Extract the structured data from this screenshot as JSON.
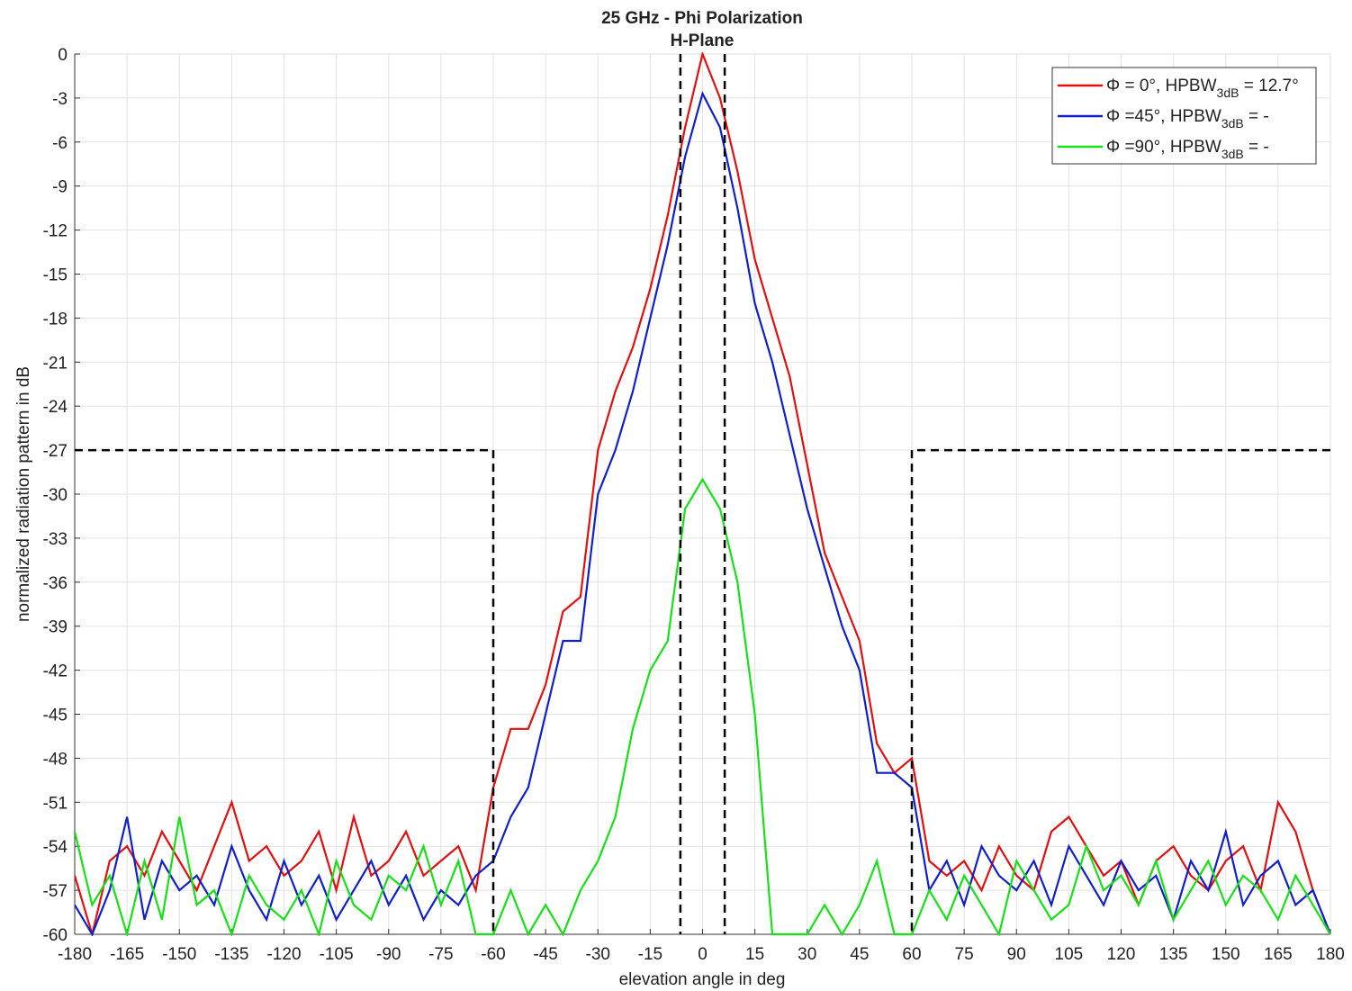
{
  "chart_data": {
    "type": "line",
    "title": "25 GHz - Phi Polarization",
    "subtitle": "H-Plane",
    "x_label": "elevation angle in deg",
    "y_label": "normalized radiation pattern in dB",
    "xlim": [
      -180,
      180
    ],
    "ylim": [
      -60,
      0
    ],
    "xticks": [
      -180,
      -165,
      -150,
      -135,
      -120,
      -105,
      -90,
      -75,
      -60,
      -45,
      -30,
      -15,
      0,
      15,
      30,
      45,
      60,
      75,
      90,
      105,
      120,
      135,
      150,
      165,
      180
    ],
    "yticks": [
      0,
      -3,
      -6,
      -9,
      -12,
      -15,
      -18,
      -21,
      -24,
      -27,
      -30,
      -33,
      -36,
      -39,
      -42,
      -45,
      -48,
      -51,
      -54,
      -57,
      -60
    ],
    "grid": true,
    "legend": "upper right",
    "x": [
      -180,
      -175,
      -170,
      -165,
      -160,
      -155,
      -150,
      -145,
      -140,
      -135,
      -130,
      -125,
      -120,
      -115,
      -110,
      -105,
      -100,
      -95,
      -90,
      -85,
      -80,
      -75,
      -70,
      -65,
      -60,
      -55,
      -50,
      -45,
      -40,
      -35,
      -30,
      -25,
      -20,
      -15,
      -10,
      -5,
      0,
      5,
      10,
      15,
      20,
      25,
      30,
      35,
      40,
      45,
      50,
      55,
      60,
      65,
      70,
      75,
      80,
      85,
      90,
      95,
      100,
      105,
      110,
      115,
      120,
      125,
      130,
      135,
      140,
      145,
      150,
      155,
      160,
      165,
      170,
      175,
      180
    ],
    "series": [
      {
        "name": "Φ = 0°, HPBW",
        "name_sub": "3dB",
        "name_tail": " = 12.7°",
        "color": "#e01010",
        "values": [
          -56,
          -60,
          -55,
          -54,
          -56,
          -53,
          -55,
          -57,
          -54,
          -51,
          -55,
          -54,
          -56,
          -55,
          -53,
          -57,
          -52,
          -56,
          -55,
          -53,
          -56,
          -55,
          -54,
          -57,
          -50,
          -46,
          -46,
          -43,
          -38,
          -37,
          -27,
          -23,
          -20,
          -16,
          -11,
          -5,
          0,
          -3,
          -8,
          -14,
          -18,
          -22,
          -28,
          -34,
          -37,
          -40,
          -47,
          -49,
          -48,
          -55,
          -56,
          -55,
          -57,
          -54,
          -56,
          -57,
          -53,
          -52,
          -54,
          -56,
          -55,
          -58,
          -55,
          -54,
          -56,
          -57,
          -55,
          -54,
          -57,
          -51,
          -53,
          -57,
          -60
        ]
      },
      {
        "name": "Φ =45°, HPBW",
        "name_sub": "3dB",
        "name_tail": " = -",
        "color": "#1020c8",
        "values": [
          -58,
          -60,
          -57,
          -52,
          -59,
          -55,
          -57,
          -56,
          -58,
          -54,
          -57,
          -59,
          -55,
          -58,
          -56,
          -59,
          -57,
          -55,
          -58,
          -56,
          -59,
          -57,
          -58,
          -56,
          -55,
          -52,
          -50,
          -45,
          -40,
          -40,
          -30,
          -27,
          -23,
          -18,
          -13,
          -7,
          -2.7,
          -5,
          -10.5,
          -17,
          -21,
          -26,
          -31,
          -35,
          -39,
          -42,
          -49,
          -49,
          -50,
          -57,
          -55,
          -58,
          -54,
          -56,
          -57,
          -55,
          -58,
          -54,
          -56,
          -58,
          -55,
          -57,
          -56,
          -59,
          -55,
          -57,
          -53,
          -58,
          -56,
          -55,
          -58,
          -57,
          -60
        ]
      },
      {
        "name": "Φ =90°, HPBW",
        "name_sub": "3dB",
        "name_tail": " = -",
        "color": "#18e018",
        "values": [
          -53,
          -58,
          -56,
          -60,
          -55,
          -59,
          -52,
          -58,
          -57,
          -60,
          -56,
          -58,
          -59,
          -57,
          -60,
          -55,
          -58,
          -59,
          -56,
          -57,
          -54,
          -58,
          -55,
          -60,
          -60,
          -57,
          -60,
          -58,
          -60,
          -57,
          -55,
          -52,
          -46,
          -42,
          -40,
          -31,
          -29,
          -31,
          -36,
          -45,
          -60,
          -60,
          -60,
          -58,
          -60,
          -58,
          -55,
          -60,
          -60,
          -57,
          -59,
          -56,
          -58,
          -60,
          -55,
          -57,
          -59,
          -58,
          -54,
          -57,
          -56,
          -58,
          -55,
          -59,
          -57,
          -55,
          -58,
          -56,
          -57,
          -59,
          -56,
          -58,
          -60
        ]
      }
    ],
    "reference_lines": [
      {
        "color": "#000000",
        "x": [
          -180,
          -60,
          -60
        ],
        "y": [
          -27,
          -27,
          -60
        ]
      },
      {
        "color": "#000000",
        "x": [
          180,
          60,
          60
        ],
        "y": [
          -27,
          -27,
          -60
        ]
      },
      {
        "color": "#000000",
        "x": [
          -6.35,
          -6.35
        ],
        "y": [
          0,
          -60
        ]
      },
      {
        "color": "#000000",
        "x": [
          6.35,
          6.35
        ],
        "y": [
          0,
          -60
        ]
      }
    ]
  }
}
